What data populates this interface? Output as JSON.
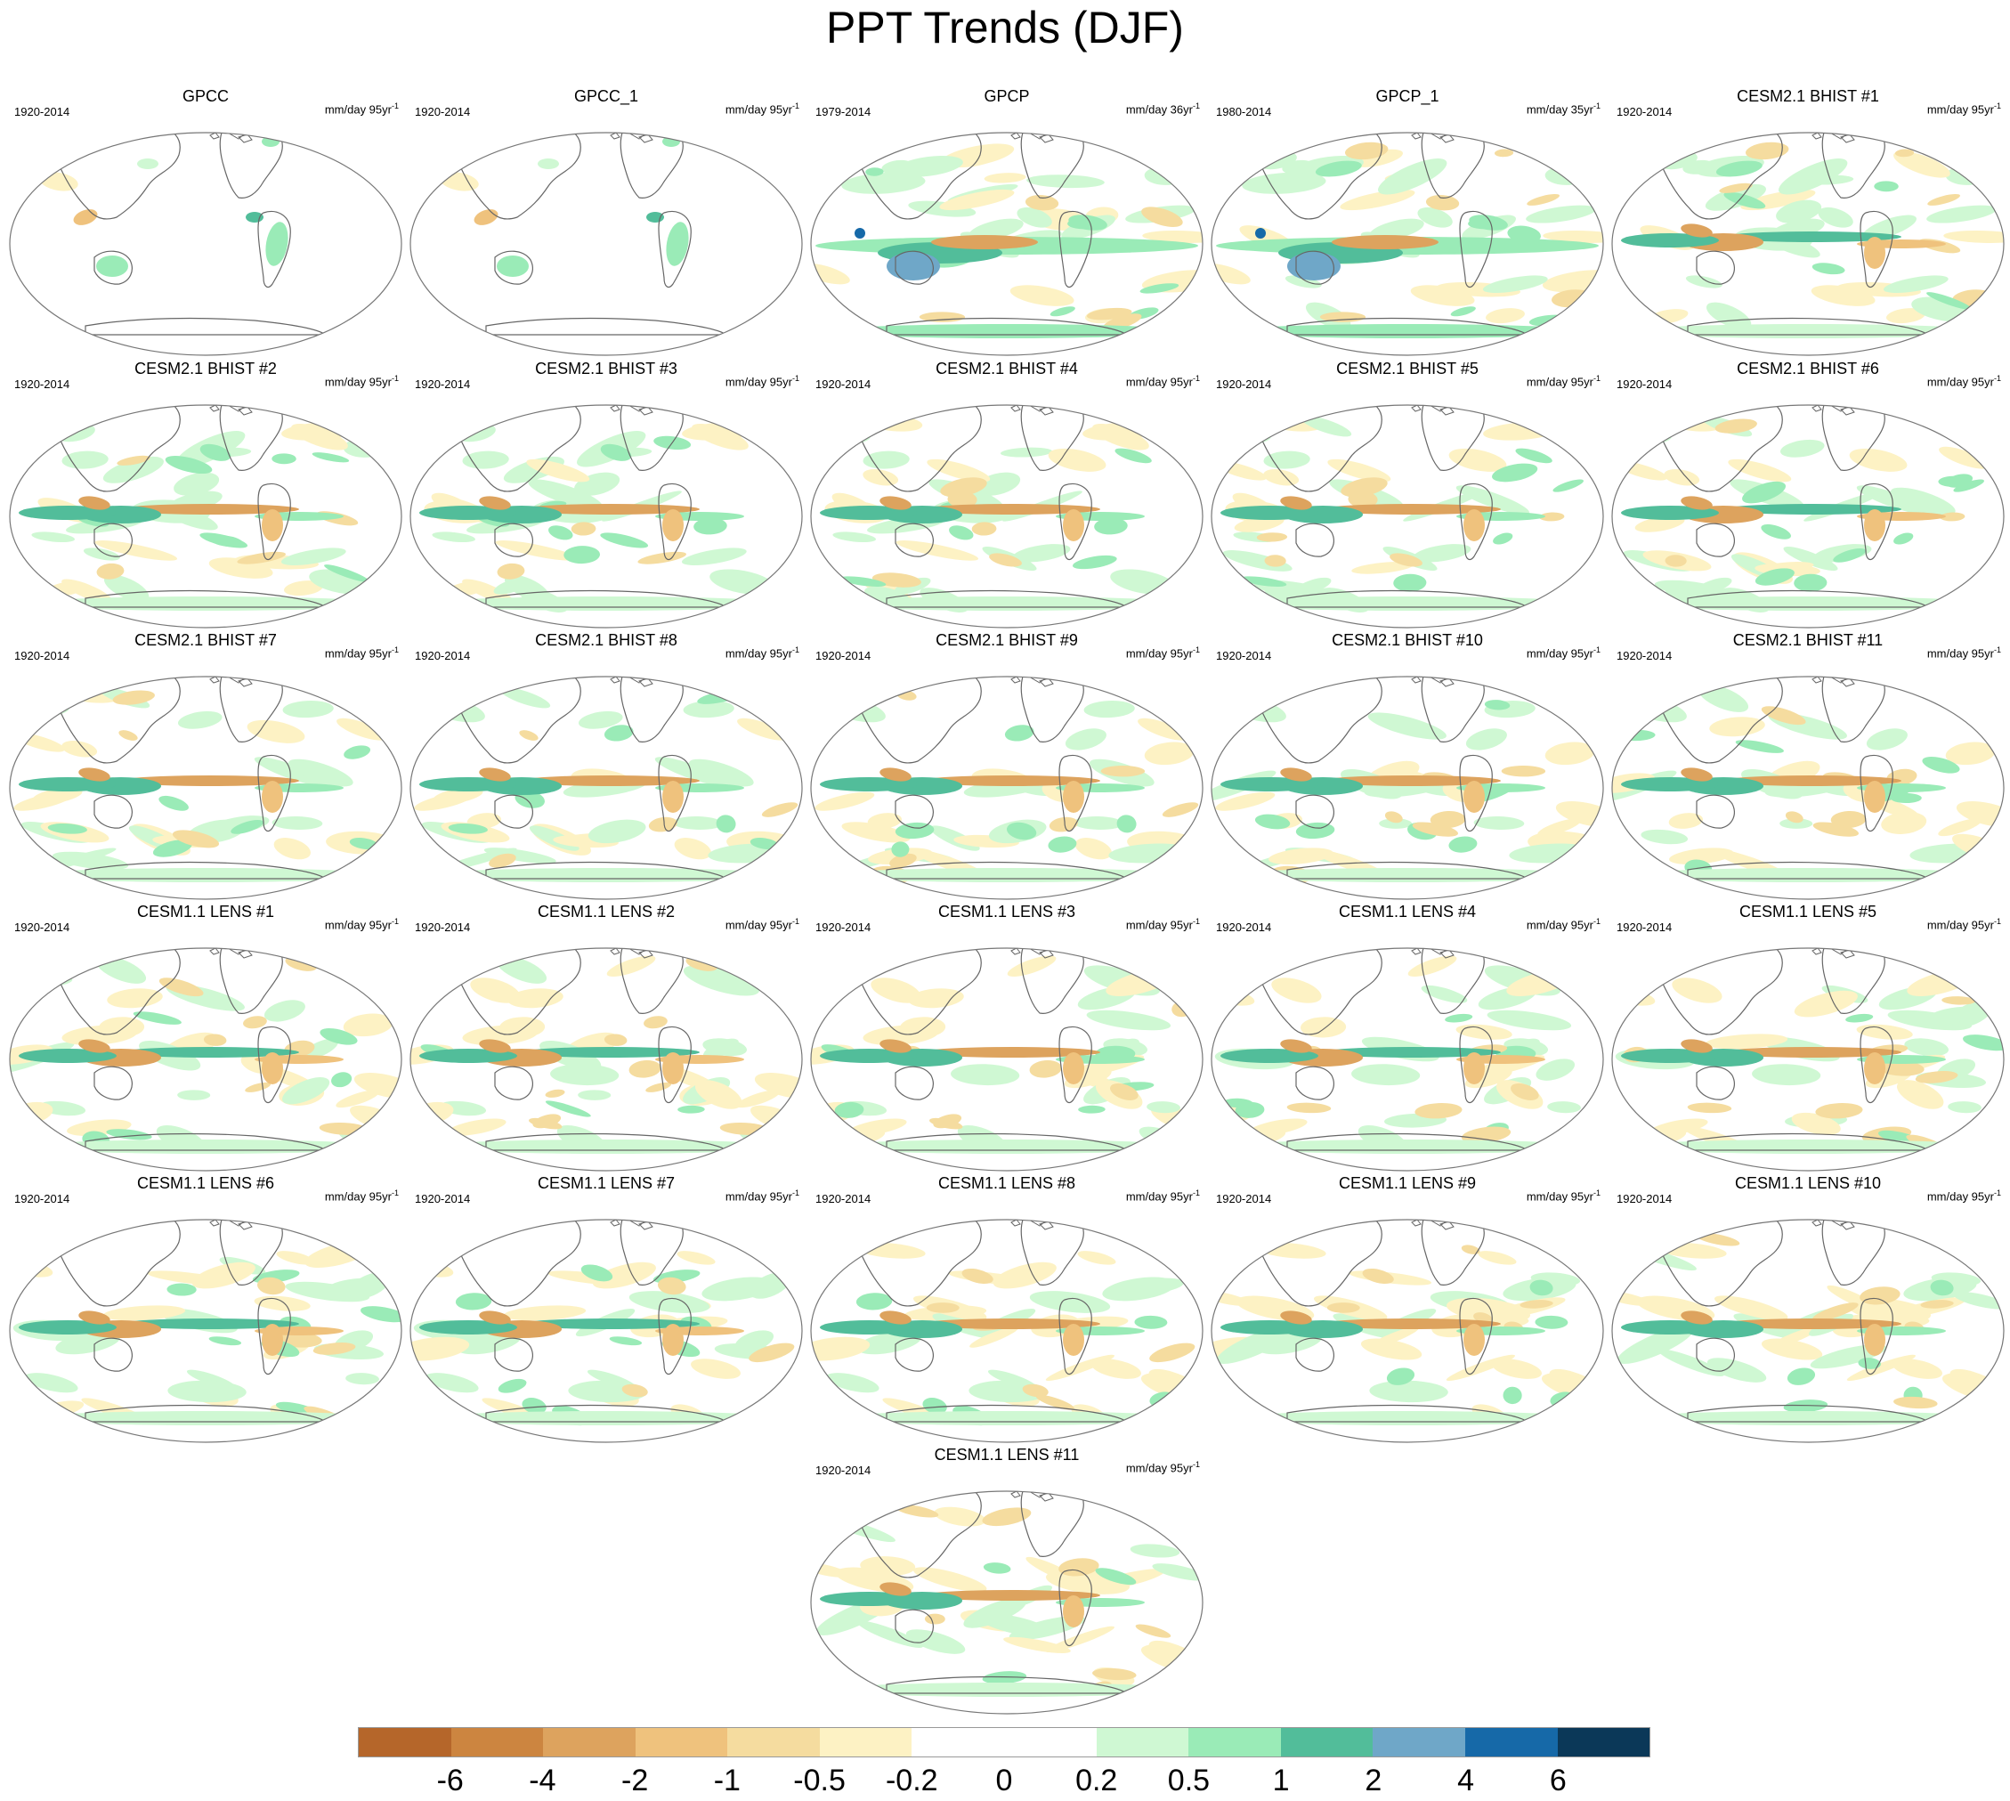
{
  "title": "PPT Trends (DJF)",
  "panels": [
    {
      "title": "GPCC",
      "period": "1920-2014",
      "units_main": "mm/day 95yr",
      "units_exp": "-1",
      "variant": "land"
    },
    {
      "title": "GPCC_1",
      "period": "1920-2014",
      "units_main": "mm/day 95yr",
      "units_exp": "-1",
      "variant": "land"
    },
    {
      "title": "GPCP",
      "period": "1979-2014",
      "units_main": "mm/day 36yr",
      "units_exp": "-1",
      "variant": "gpcp"
    },
    {
      "title": "GPCP_1",
      "period": "1980-2014",
      "units_main": "mm/day 35yr",
      "units_exp": "-1",
      "variant": "gpcp"
    },
    {
      "title": "CESM2.1 BHIST #1",
      "period": "1920-2014",
      "units_main": "mm/day 95yr",
      "units_exp": "-1",
      "variant": "wetpac"
    },
    {
      "title": "CESM2.1 BHIST #2",
      "period": "1920-2014",
      "units_main": "mm/day 95yr",
      "units_exp": "-1",
      "variant": "model"
    },
    {
      "title": "CESM2.1 BHIST #3",
      "period": "1920-2014",
      "units_main": "mm/day 95yr",
      "units_exp": "-1",
      "variant": "model"
    },
    {
      "title": "CESM2.1 BHIST #4",
      "period": "1920-2014",
      "units_main": "mm/day 95yr",
      "units_exp": "-1",
      "variant": "model"
    },
    {
      "title": "CESM2.1 BHIST #5",
      "period": "1920-2014",
      "units_main": "mm/day 95yr",
      "units_exp": "-1",
      "variant": "model"
    },
    {
      "title": "CESM2.1 BHIST #6",
      "period": "1920-2014",
      "units_main": "mm/day 95yr",
      "units_exp": "-1",
      "variant": "wetpac"
    },
    {
      "title": "CESM2.1 BHIST #7",
      "period": "1920-2014",
      "units_main": "mm/day 95yr",
      "units_exp": "-1",
      "variant": "model"
    },
    {
      "title": "CESM2.1 BHIST #8",
      "period": "1920-2014",
      "units_main": "mm/day 95yr",
      "units_exp": "-1",
      "variant": "model"
    },
    {
      "title": "CESM2.1 BHIST #9",
      "period": "1920-2014",
      "units_main": "mm/day 95yr",
      "units_exp": "-1",
      "variant": "model"
    },
    {
      "title": "CESM2.1 BHIST #10",
      "period": "1920-2014",
      "units_main": "mm/day 95yr",
      "units_exp": "-1",
      "variant": "model"
    },
    {
      "title": "CESM2.1 BHIST #11",
      "period": "1920-2014",
      "units_main": "mm/day 95yr",
      "units_exp": "-1",
      "variant": "model"
    },
    {
      "title": "CESM1.1 LENS #1",
      "period": "1920-2014",
      "units_main": "mm/day 95yr",
      "units_exp": "-1",
      "variant": "wetpac"
    },
    {
      "title": "CESM1.1 LENS #2",
      "period": "1920-2014",
      "units_main": "mm/day 95yr",
      "units_exp": "-1",
      "variant": "wetpac"
    },
    {
      "title": "CESM1.1 LENS #3",
      "period": "1920-2014",
      "units_main": "mm/day 95yr",
      "units_exp": "-1",
      "variant": "model"
    },
    {
      "title": "CESM1.1 LENS #4",
      "period": "1920-2014",
      "units_main": "mm/day 95yr",
      "units_exp": "-1",
      "variant": "wetpac"
    },
    {
      "title": "CESM1.1 LENS #5",
      "period": "1920-2014",
      "units_main": "mm/day 95yr",
      "units_exp": "-1",
      "variant": "model"
    },
    {
      "title": "CESM1.1 LENS #6",
      "period": "1920-2014",
      "units_main": "mm/day 95yr",
      "units_exp": "-1",
      "variant": "wetpac"
    },
    {
      "title": "CESM1.1 LENS #7",
      "period": "1920-2014",
      "units_main": "mm/day 95yr",
      "units_exp": "-1",
      "variant": "wetpac"
    },
    {
      "title": "CESM1.1 LENS #8",
      "period": "1920-2014",
      "units_main": "mm/day 95yr",
      "units_exp": "-1",
      "variant": "model"
    },
    {
      "title": "CESM1.1 LENS #9",
      "period": "1920-2014",
      "units_main": "mm/day 95yr",
      "units_exp": "-1",
      "variant": "model"
    },
    {
      "title": "CESM1.1 LENS #10",
      "period": "1920-2014",
      "units_main": "mm/day 95yr",
      "units_exp": "-1",
      "variant": "model"
    },
    {
      "title": "CESM1.1 LENS #11",
      "period": "1920-2014",
      "units_main": "mm/day 95yr",
      "units_exp": "-1",
      "variant": "model"
    }
  ],
  "colorbar": {
    "colors": [
      "#b5662a",
      "#cc8540",
      "#dda35e",
      "#efc27d",
      "#f5dc9f",
      "#fdf2c4",
      "#ffffff",
      "#ffffff",
      "#cff8d3",
      "#9aebb7",
      "#52bd9a",
      "#6fa7c8",
      "#1669a8",
      "#0b3858"
    ],
    "labels": [
      "-6",
      "-4",
      "-2",
      "-1",
      "-0.5",
      "-0.2",
      "0",
      "0.2",
      "0.5",
      "1",
      "2",
      "4",
      "6"
    ]
  }
}
